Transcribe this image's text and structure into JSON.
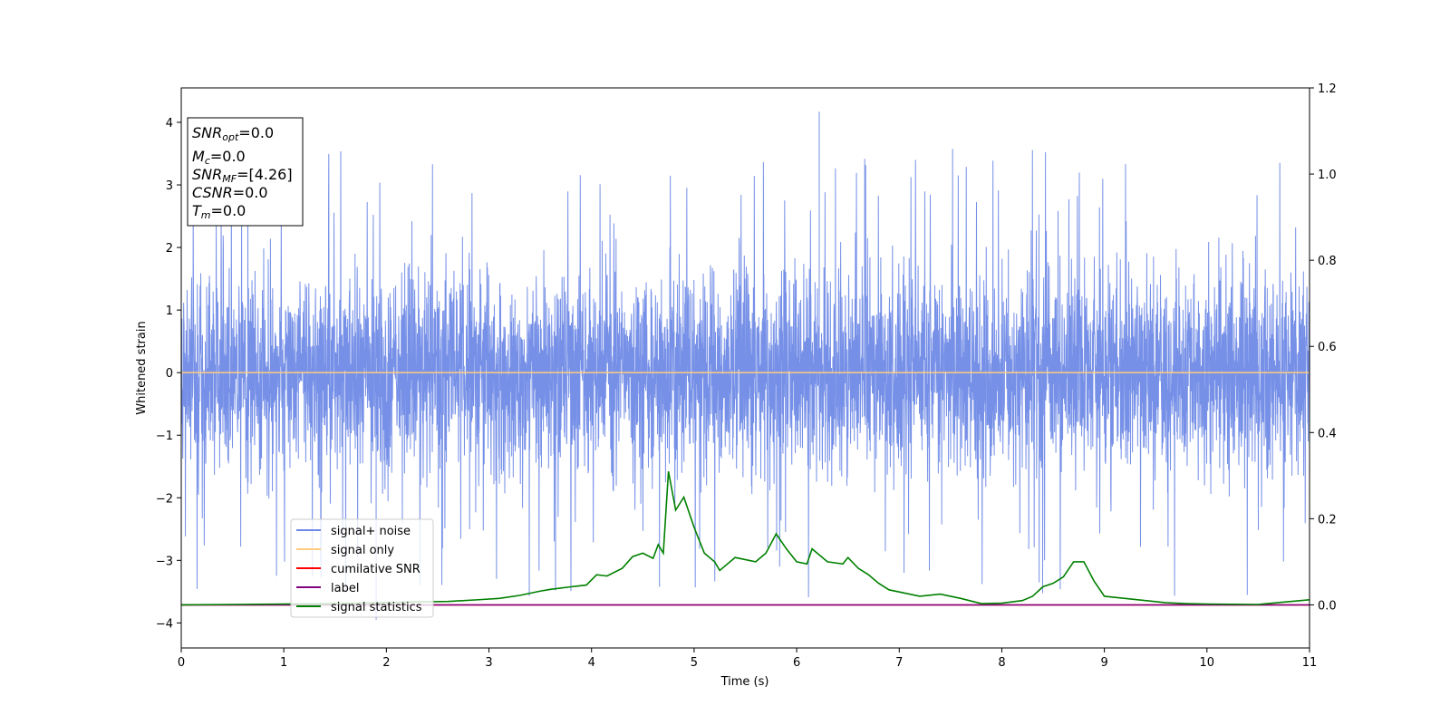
{
  "chart_data": {
    "type": "line",
    "xlabel": "Time (s)",
    "ylabel": "Whitened strain",
    "xlim": [
      0,
      11
    ],
    "ylim_left": [
      -4.4,
      4.55
    ],
    "ylim_right": [
      -0.1,
      1.2
    ],
    "x_ticks": [
      0,
      1,
      2,
      3,
      4,
      5,
      6,
      7,
      8,
      9,
      10,
      11
    ],
    "y_ticks_left": [
      -4,
      -3,
      -2,
      -1,
      0,
      1,
      2,
      3,
      4
    ],
    "y_ticks_right": [
      0.0,
      0.2,
      0.4,
      0.6,
      0.8,
      1.0,
      1.2
    ],
    "x_tick_labels": [
      "0",
      "1",
      "2",
      "3",
      "4",
      "5",
      "6",
      "7",
      "8",
      "9",
      "10",
      "11"
    ],
    "y_tick_labels_left": [
      "−4",
      "−3",
      "−2",
      "−1",
      "0",
      "1",
      "2",
      "3",
      "4"
    ],
    "y_tick_labels_right": [
      "0.0",
      "0.2",
      "0.4",
      "0.6",
      "0.8",
      "1.0",
      "1.2"
    ],
    "grid": false,
    "legend_placement": "lower-left",
    "series": [
      {
        "name": "signal+ noise",
        "color": "#6f8ae6",
        "axis": "left",
        "style": "dense-noise",
        "typical_range": [
          -2.0,
          2.0
        ],
        "max_value": 4.17,
        "min_value": -3.95
      },
      {
        "name": "signal only",
        "color": "#ffcc80",
        "axis": "left",
        "constant": 0.0
      },
      {
        "name": "cumilative SNR",
        "color": "#ff0000",
        "axis": "right",
        "constant": 0.0
      },
      {
        "name": "label",
        "color": "#800080",
        "axis": "right",
        "constant": 0.0
      },
      {
        "name": "signal statistics",
        "color": "#008000",
        "axis": "right",
        "x": [
          0,
          0.5,
          1.0,
          1.5,
          2.0,
          2.3,
          2.6,
          2.9,
          3.1,
          3.3,
          3.5,
          3.6,
          3.8,
          3.95,
          4.05,
          4.15,
          4.3,
          4.4,
          4.5,
          4.6,
          4.65,
          4.7,
          4.75,
          4.82,
          4.9,
          5.0,
          5.1,
          5.2,
          5.25,
          5.4,
          5.6,
          5.7,
          5.8,
          5.9,
          6.0,
          6.1,
          6.15,
          6.3,
          6.45,
          6.5,
          6.6,
          6.7,
          6.8,
          6.9,
          7.0,
          7.2,
          7.4,
          7.6,
          7.8,
          8.0,
          8.2,
          8.3,
          8.4,
          8.5,
          8.6,
          8.7,
          8.8,
          8.9,
          9.0,
          9.2,
          9.4,
          9.6,
          9.8,
          10.0,
          10.5,
          11.0
        ],
        "values": [
          0.0,
          0.001,
          0.002,
          0.003,
          0.005,
          0.007,
          0.008,
          0.012,
          0.015,
          0.022,
          0.032,
          0.036,
          0.042,
          0.046,
          0.07,
          0.067,
          0.085,
          0.112,
          0.12,
          0.108,
          0.14,
          0.12,
          0.31,
          0.22,
          0.25,
          0.18,
          0.12,
          0.1,
          0.08,
          0.11,
          0.1,
          0.12,
          0.165,
          0.13,
          0.1,
          0.095,
          0.13,
          0.1,
          0.095,
          0.11,
          0.085,
          0.07,
          0.05,
          0.035,
          0.03,
          0.02,
          0.025,
          0.015,
          0.003,
          0.004,
          0.01,
          0.02,
          0.042,
          0.05,
          0.065,
          0.1,
          0.1,
          0.055,
          0.02,
          0.015,
          0.01,
          0.005,
          0.003,
          0.002,
          0.001,
          0.012
        ]
      }
    ]
  },
  "info_box": {
    "snr_opt": {
      "label": "SNR",
      "sub": "opt",
      "value": "=0.0"
    },
    "mc": {
      "label": "M",
      "sub": "c",
      "value": "=0.0"
    },
    "snr_mf": {
      "label": "SNR",
      "sub": "MF",
      "value": "=[4.26]"
    },
    "csnr": {
      "label": "CSNR",
      "value": "=0.0"
    },
    "tm": {
      "label": "T",
      "sub": "m",
      "value": "=0.0"
    }
  }
}
